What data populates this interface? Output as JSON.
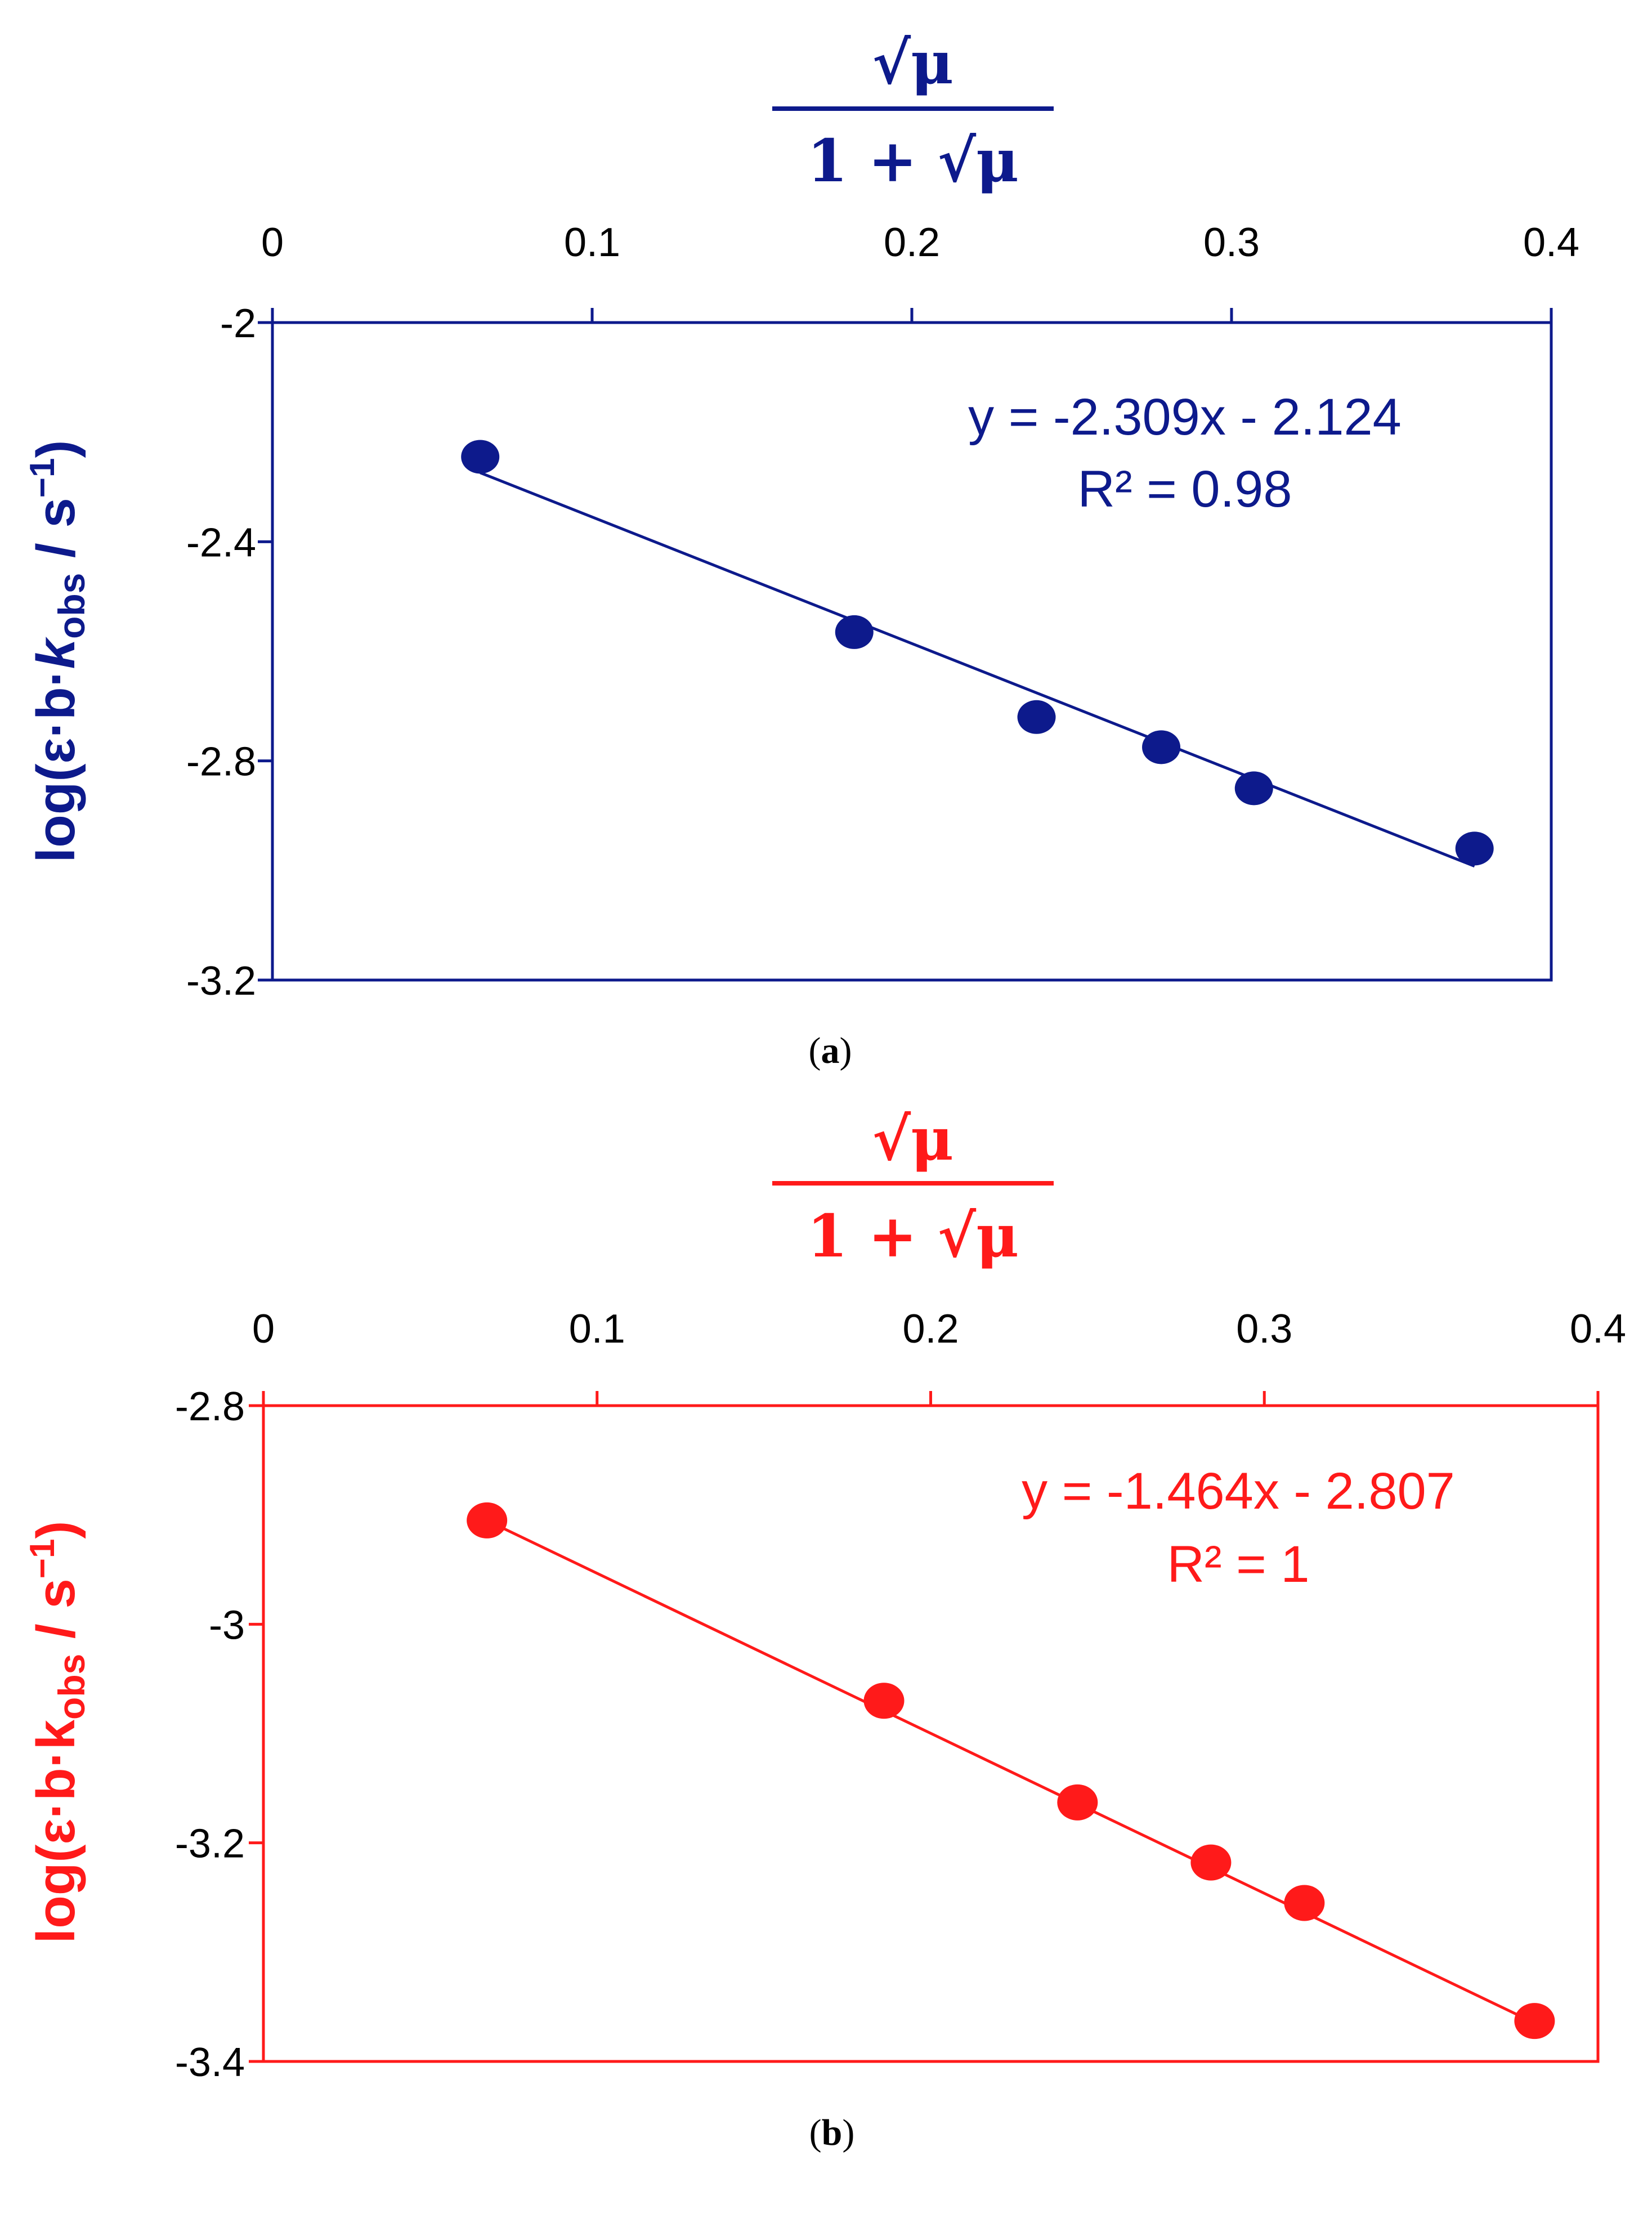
{
  "chart_data": [
    {
      "panel": "a",
      "type": "scatter",
      "color": "#0d1a8c",
      "caption": "(a)",
      "top_axis_label": {
        "numerator": "√μ",
        "denominator_prefix": "1 + ",
        "denominator_root": "√μ"
      },
      "ylabel": {
        "prefix": "log(ε·b·",
        "k": "k",
        "sub": "obs",
        "suffix": " / s",
        "sup": "−1",
        "close": ")"
      },
      "xlim": [
        0,
        0.4
      ],
      "ylim": [
        -3.2,
        -2
      ],
      "x_ticks": [
        "0",
        "0.1",
        "0.2",
        "0.3",
        "0.4"
      ],
      "y_ticks": [
        "-2",
        "-2.4",
        "-2.8",
        "-3.2"
      ],
      "points": [
        {
          "x": 0.065,
          "y": -2.245
        },
        {
          "x": 0.182,
          "y": -2.565
        },
        {
          "x": 0.239,
          "y": -2.72
        },
        {
          "x": 0.278,
          "y": -2.775
        },
        {
          "x": 0.307,
          "y": -2.85
        },
        {
          "x": 0.376,
          "y": -2.96
        }
      ],
      "trendline": {
        "slope": -2.309,
        "intercept": -2.124,
        "x_range": [
          0.065,
          0.376
        ]
      },
      "equation": "y = -2.309x - 2.124",
      "r_squared": "R² = 0.98"
    },
    {
      "panel": "b",
      "type": "scatter",
      "color": "#ff1a1a",
      "caption": "(b)",
      "top_axis_label": {
        "numerator": "√μ",
        "denominator_prefix": "1 + ",
        "denominator_root": "√μ"
      },
      "ylabel": {
        "prefix": "log(ε·b·",
        "k": "k",
        "sub": "obs",
        "suffix": " / s",
        "sup": "−1",
        "close": ")"
      },
      "xlim": [
        0,
        0.4
      ],
      "ylim": [
        -3.4,
        -2.8
      ],
      "x_ticks": [
        "0",
        "0.1",
        "0.2",
        "0.3",
        "0.4"
      ],
      "y_ticks": [
        "-2.8",
        "-3",
        "-3.2",
        "-3.4"
      ],
      "points": [
        {
          "x": 0.067,
          "y": -2.905
        },
        {
          "x": 0.186,
          "y": -3.07
        },
        {
          "x": 0.244,
          "y": -3.163
        },
        {
          "x": 0.284,
          "y": -3.218
        },
        {
          "x": 0.312,
          "y": -3.255
        },
        {
          "x": 0.381,
          "y": -3.363
        }
      ],
      "trendline": {
        "slope": -1.464,
        "intercept": -2.807,
        "x_range": [
          0.067,
          0.381
        ]
      },
      "equation": "y = -1.464x - 2.807",
      "r_squared": "R² = 1"
    }
  ]
}
